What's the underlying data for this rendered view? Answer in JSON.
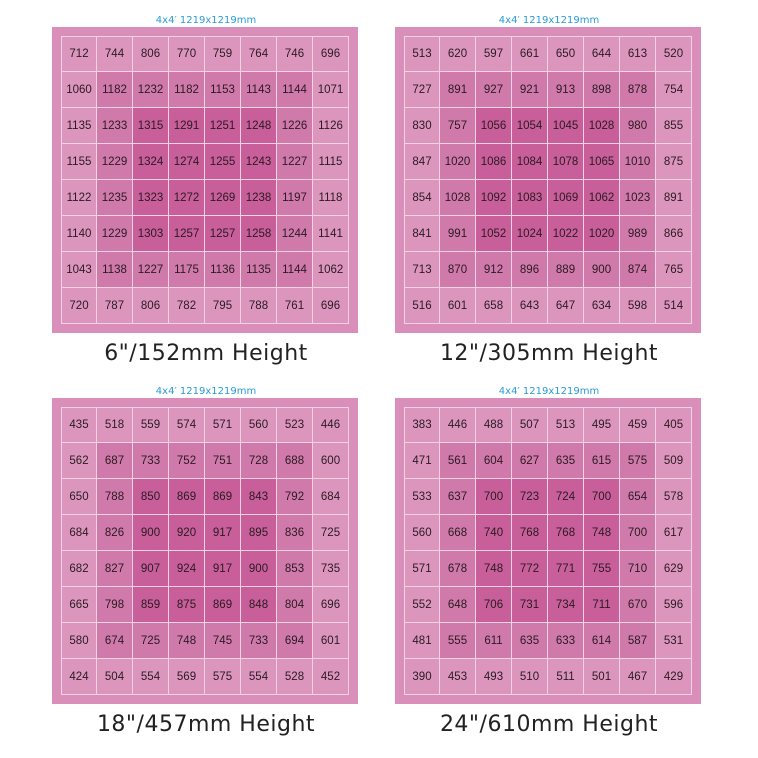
{
  "colors": {
    "outer_ring": "#dc96be",
    "middle_ring": "#d07aab",
    "inner_core": "#c85f9b",
    "board": "#d98fb9",
    "subtitle": "#2a9ad8"
  },
  "chart_data": [
    {
      "type": "heatmap",
      "subtitle": "4x4′  1219x1219mm",
      "title": "6\"/152mm Height",
      "values": [
        [
          712,
          744,
          806,
          770,
          759,
          764,
          746,
          696
        ],
        [
          1060,
          1182,
          1232,
          1182,
          1153,
          1143,
          1144,
          1071
        ],
        [
          1135,
          1233,
          1315,
          1291,
          1251,
          1248,
          1226,
          1126
        ],
        [
          1155,
          1229,
          1324,
          1274,
          1255,
          1243,
          1227,
          1115
        ],
        [
          1122,
          1235,
          1323,
          1272,
          1269,
          1238,
          1197,
          1118
        ],
        [
          1140,
          1229,
          1303,
          1257,
          1257,
          1258,
          1244,
          1141
        ],
        [
          1043,
          1138,
          1227,
          1175,
          1136,
          1135,
          1144,
          1062
        ],
        [
          720,
          787,
          806,
          782,
          795,
          788,
          761,
          696
        ]
      ]
    },
    {
      "type": "heatmap",
      "subtitle": "4x4′  1219x1219mm",
      "title": "12\"/305mm Height",
      "values": [
        [
          513,
          620,
          597,
          661,
          650,
          644,
          613,
          520
        ],
        [
          727,
          891,
          927,
          921,
          913,
          898,
          878,
          754
        ],
        [
          830,
          757,
          1056,
          1054,
          1045,
          1028,
          980,
          855
        ],
        [
          847,
          1020,
          1086,
          1084,
          1078,
          1065,
          1010,
          875
        ],
        [
          854,
          1028,
          1092,
          1083,
          1069,
          1062,
          1023,
          891
        ],
        [
          841,
          991,
          1052,
          1024,
          1022,
          1020,
          989,
          866
        ],
        [
          713,
          870,
          912,
          896,
          889,
          900,
          874,
          765
        ],
        [
          516,
          601,
          658,
          643,
          647,
          634,
          598,
          514
        ]
      ]
    },
    {
      "type": "heatmap",
      "subtitle": "4x4′  1219x1219mm",
      "title": "18\"/457mm Height",
      "values": [
        [
          435,
          518,
          559,
          574,
          571,
          560,
          523,
          446
        ],
        [
          562,
          687,
          733,
          752,
          751,
          728,
          688,
          600
        ],
        [
          650,
          788,
          850,
          869,
          869,
          843,
          792,
          684
        ],
        [
          684,
          826,
          900,
          920,
          917,
          895,
          836,
          725
        ],
        [
          682,
          827,
          907,
          924,
          917,
          900,
          853,
          735
        ],
        [
          665,
          798,
          859,
          875,
          869,
          848,
          804,
          696
        ],
        [
          580,
          674,
          725,
          748,
          745,
          733,
          694,
          601
        ],
        [
          424,
          504,
          554,
          569,
          575,
          554,
          528,
          452
        ]
      ]
    },
    {
      "type": "heatmap",
      "subtitle": "4x4′  1219x1219mm",
      "title": "24\"/610mm Height",
      "values": [
        [
          383,
          446,
          488,
          507,
          513,
          495,
          459,
          405
        ],
        [
          471,
          561,
          604,
          627,
          635,
          615,
          575,
          509
        ],
        [
          533,
          637,
          700,
          723,
          724,
          700,
          654,
          578
        ],
        [
          560,
          668,
          740,
          768,
          768,
          748,
          700,
          617
        ],
        [
          571,
          678,
          748,
          772,
          771,
          755,
          710,
          629
        ],
        [
          552,
          648,
          706,
          731,
          734,
          711,
          670,
          596
        ],
        [
          481,
          555,
          611,
          635,
          633,
          614,
          587,
          531
        ],
        [
          390,
          453,
          493,
          510,
          511,
          501,
          467,
          429
        ]
      ]
    }
  ]
}
